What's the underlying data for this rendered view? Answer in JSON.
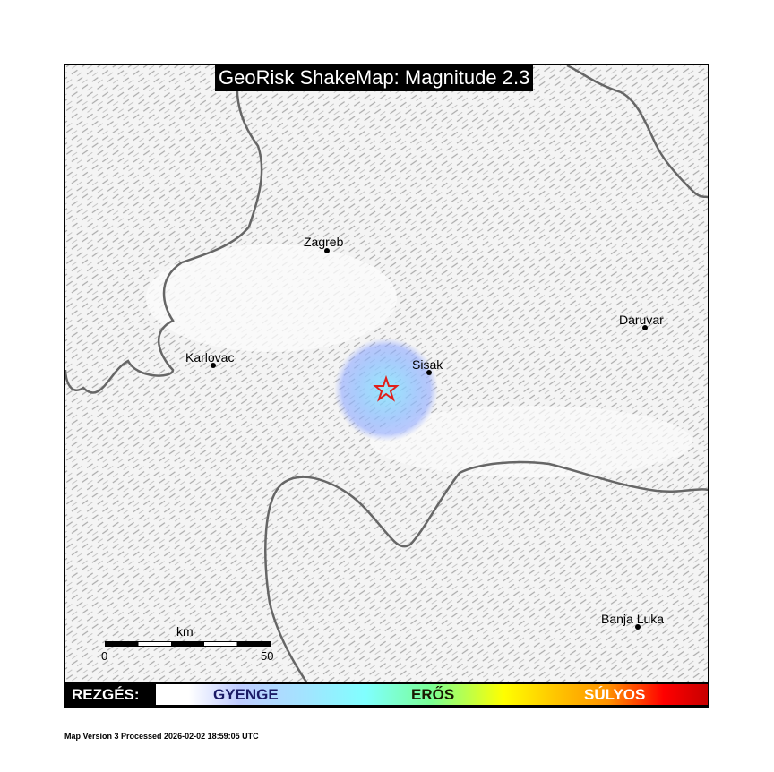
{
  "title": "GeoRisk ShakeMap: Magnitude 2.3",
  "cities": [
    {
      "name": "Zagreb"
    },
    {
      "name": "Karlovac"
    },
    {
      "name": "Sisak"
    },
    {
      "name": "Daruvar"
    },
    {
      "name": "Banja Luka"
    }
  ],
  "epicenter_icon": "star-icon",
  "scale_bar": {
    "unit": "km",
    "start": "0",
    "end": "50"
  },
  "legend": {
    "label": "REZGÉS:",
    "levels": [
      {
        "label": "GYENGE",
        "color": "#1a1a66"
      },
      {
        "label": "ERŐS",
        "color": "#1a1a00"
      },
      {
        "label": "SÚLYOS",
        "color": "#ffffff"
      }
    ]
  },
  "colors": {
    "shaking_area": "#7fa8ff",
    "epicenter": "#e0201b",
    "border": "#666666"
  },
  "footer": "Map Version 3 Processed 2026-02-02 18:59:05 UTC"
}
